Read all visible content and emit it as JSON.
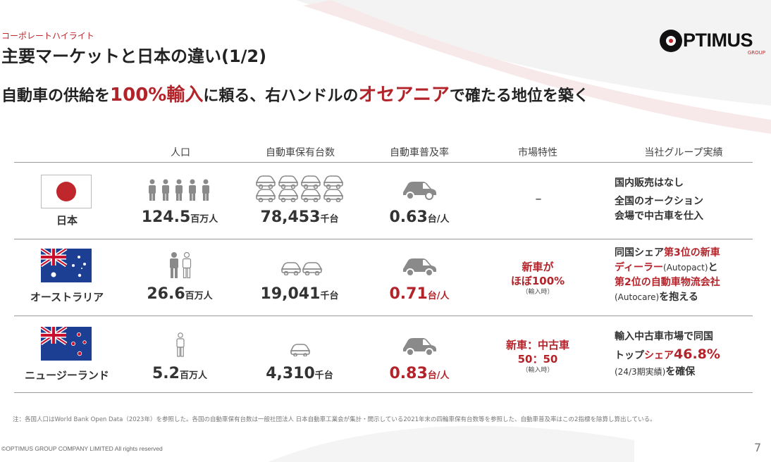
{
  "header": {
    "eyebrow": "コーポレートハイライト",
    "title": "主要マーケットと日本の違い(1/2)",
    "subtitle_parts": [
      "自動車の供給を",
      "100%輸入",
      "に頼る、右ハンドルの",
      "オセアニア",
      "で確たる地位を築く"
    ]
  },
  "logo": {
    "text": "PTIMUS",
    "sub": "GROUP"
  },
  "table": {
    "columns": [
      "人口",
      "自動車保有台数",
      "自動車普及率",
      "市場特性",
      "当社グループ実績"
    ],
    "rows": [
      {
        "country": "日本",
        "flag": "japan-flag",
        "population": "124.5",
        "population_unit": "百万人",
        "vehicles": "78,453",
        "vehicles_unit": "千台",
        "rate": "0.63",
        "rate_unit": "台/人",
        "market": "–",
        "performance_l1": "国内販売はなし",
        "performance_l2": "全国のオークション",
        "performance_l3": "会場で中古車を仕入"
      },
      {
        "country": "オーストラリア",
        "flag": "australia-flag",
        "population": "26.6",
        "population_unit": "百万人",
        "vehicles": "19,041",
        "vehicles_unit": "千台",
        "rate": "0.71",
        "rate_unit": "台/人",
        "market_l1": "新車が",
        "market_l2": "ほぼ100%",
        "market_note": "（輸入時）",
        "performance_l1a": "同国シェア",
        "performance_l1b": "第3位の新車",
        "performance_l2a": "ディーラー",
        "performance_l2b": "(Autopact)",
        "performance_l2c": "と",
        "performance_l3": "第2位の自動車物流会社",
        "performance_l4a": "(Autocare)",
        "performance_l4b": "を抱える"
      },
      {
        "country": "ニュージーランド",
        "flag": "new-zealand-flag",
        "population": "5.2",
        "population_unit": "百万人",
        "vehicles": "4,310",
        "vehicles_unit": "千台",
        "rate": "0.83",
        "rate_unit": "台/人",
        "market_l1": "新車：中古車",
        "market_l2": "50：50",
        "market_note": "（輸入時）",
        "performance_l1": "輸入中古車市場で同国",
        "performance_l2a": "トップ",
        "performance_l2b": "シェア",
        "performance_l2c": "46.8%",
        "performance_l3a": "(24/3期実績)",
        "performance_l3b": "を確保"
      }
    ]
  },
  "footnote": "注：各国人口はWorld Bank Open Data（2023年）を参照した。各国の自動車保有台数は一般社団法人 日本自動車工業会が集計・開示している2021年末の四輪車保有台数等を参照した、自動車普及率はこの2指標を除算し算出している。",
  "footer": {
    "copyright": "©OPTIMUS GROUP COMPANY LIMITED All rights reserved",
    "page": "7"
  },
  "colors": {
    "accent": "#b3232a",
    "icon_grey": "#8a8a8a",
    "rule": "#999999"
  }
}
